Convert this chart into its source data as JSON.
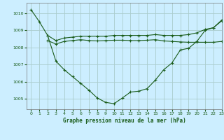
{
  "title": "Graphe pression niveau de la mer (hPa)",
  "background_color": "#cceeff",
  "grid_color": "#aacccc",
  "line_color": "#1a5c1a",
  "xlim": [
    -0.5,
    23
  ],
  "ylim": [
    1004.4,
    1010.6
  ],
  "yticks": [
    1005,
    1006,
    1007,
    1008,
    1009,
    1010
  ],
  "xticks": [
    0,
    1,
    2,
    3,
    4,
    5,
    6,
    7,
    8,
    9,
    10,
    11,
    12,
    13,
    14,
    15,
    16,
    17,
    18,
    19,
    20,
    21,
    22,
    23
  ],
  "series": [
    {
      "x": [
        0,
        1,
        2,
        3,
        4,
        5,
        6,
        7,
        8,
        9,
        10,
        11,
        12,
        13,
        14,
        15,
        16,
        17,
        18,
        19,
        20,
        21,
        22,
        23
      ],
      "y": [
        1010.2,
        1009.5,
        1008.7,
        1007.2,
        1006.7,
        1006.3,
        1005.9,
        1005.5,
        1005.05,
        1004.8,
        1004.72,
        1005.05,
        1005.4,
        1005.45,
        1005.6,
        1006.1,
        1006.7,
        1007.1,
        1007.85,
        1007.95,
        1008.35,
        1009.0,
        1009.15,
        1009.6
      ]
    },
    {
      "x": [
        2,
        3,
        4,
        5,
        6,
        7,
        8,
        9,
        10,
        11,
        12,
        13,
        14,
        15,
        16,
        17,
        18,
        19,
        20,
        21,
        22,
        23
      ],
      "y": [
        1008.7,
        1008.4,
        1008.55,
        1008.6,
        1008.65,
        1008.65,
        1008.65,
        1008.65,
        1008.7,
        1008.7,
        1008.7,
        1008.7,
        1008.7,
        1008.75,
        1008.7,
        1008.7,
        1008.7,
        1008.75,
        1008.85,
        1009.05,
        1009.15,
        1009.55
      ]
    },
    {
      "x": [
        2,
        3,
        4,
        5,
        6,
        7,
        8,
        9,
        10,
        11,
        12,
        13,
        14,
        15,
        16,
        17,
        18,
        19,
        20,
        21,
        22,
        23
      ],
      "y": [
        1008.4,
        1008.2,
        1008.35,
        1008.4,
        1008.45,
        1008.4,
        1008.38,
        1008.4,
        1008.42,
        1008.42,
        1008.4,
        1008.4,
        1008.42,
        1008.45,
        1008.38,
        1008.35,
        1008.32,
        1008.3,
        1008.3,
        1008.3,
        1008.3,
        1008.35
      ]
    }
  ]
}
